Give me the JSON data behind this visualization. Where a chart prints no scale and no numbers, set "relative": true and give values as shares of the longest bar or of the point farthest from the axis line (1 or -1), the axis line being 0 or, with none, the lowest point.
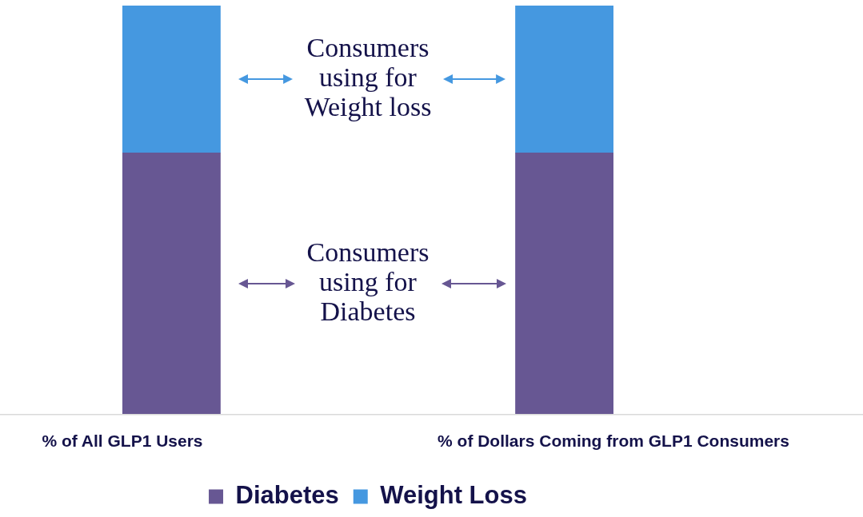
{
  "chart_data": {
    "type": "bar",
    "stacked": true,
    "relative": true,
    "categories": [
      "% of All GLP1 Users",
      "% of Dollars Coming from GLP1 Consumers"
    ],
    "series": [
      {
        "name": "Diabetes",
        "color": "#675793",
        "values": [
          0.64,
          0.64
        ]
      },
      {
        "name": "Weight Loss",
        "color": "#4598e0",
        "values": [
          0.36,
          0.36
        ]
      }
    ],
    "annotations": [
      "Consumers using for Weight loss",
      "Consumers using for Diabetes"
    ],
    "legend": "bottom"
  }
}
